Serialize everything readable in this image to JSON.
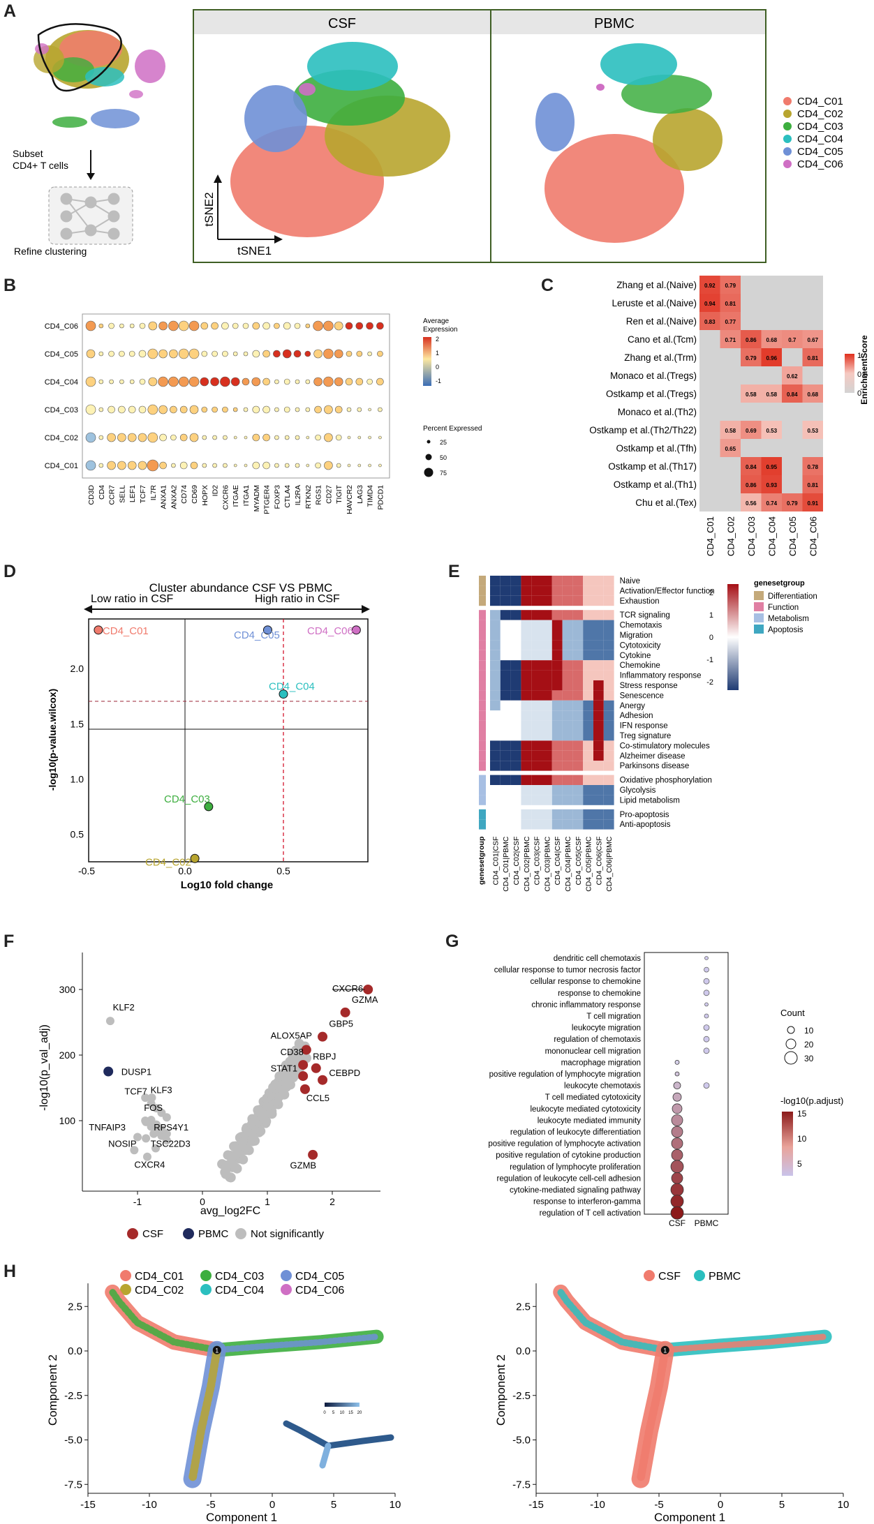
{
  "panels": {
    "a": "A",
    "b": "B",
    "c": "C",
    "d": "D",
    "e": "E",
    "f": "F",
    "g": "G",
    "h": "H"
  },
  "panelA": {
    "subset_text_1": "Subset",
    "subset_text_2": "CD4+ T cells",
    "refine_text": "Refine clustering",
    "facet_left": "CSF",
    "facet_right": "PBMC",
    "axis_y": "tSNE2",
    "axis_x": "tSNE1",
    "legend": [
      {
        "label": "CD4_C01",
        "color": "#F07B6D"
      },
      {
        "label": "CD4_C02",
        "color": "#B8A52F"
      },
      {
        "label": "CD4_C03",
        "color": "#3DAE3F"
      },
      {
        "label": "CD4_C04",
        "color": "#2BBFBF"
      },
      {
        "label": "CD4_C05",
        "color": "#6F90D6"
      },
      {
        "label": "CD4_C06",
        "color": "#CF6FC4"
      }
    ]
  },
  "panelB": {
    "rows": [
      "CD4_C06",
      "CD4_C05",
      "CD4_C04",
      "CD4_C03",
      "CD4_C02",
      "CD4_C01"
    ],
    "genes": [
      "CD3D",
      "CD4",
      "CCR7",
      "SELL",
      "LEF1",
      "TCF7",
      "IL7R",
      "ANXA1",
      "ANXA2",
      "CD74",
      "CD69",
      "HOPX",
      "ID2",
      "CXCR6",
      "ITGAE",
      "ITGA1",
      "MYADM",
      "PTGER4",
      "FOXP3",
      "CTLA4",
      "IL2RA",
      "RTKN2",
      "RGS1",
      "CD27",
      "TIGIT",
      "HAVCR2",
      "LAG3",
      "TIMD4",
      "PDCD1"
    ],
    "legend_avg_title_1": "Average",
    "legend_avg_title_2": "Expression",
    "legend_avg_ticks": [
      "2",
      "1",
      "0",
      "-1"
    ],
    "legend_pct_title": "Percent Expressed",
    "legend_pct_ticks": [
      "25",
      "50",
      "75"
    ]
  },
  "panelC": {
    "rows": [
      "Zhang et al.(Naive)",
      "Leruste et al.(Naive)",
      "Ren et al.(Naive)",
      "Cano et al.(Tcm)",
      "Zhang et al.(Trm)",
      "Monaco et al.(Tregs)",
      "Ostkamp et al.(Tregs)",
      "Monaco et al.(Th2)",
      "Ostkamp et al.(Th2/Th22)",
      "Ostkamp et al.(Tfh)",
      "Ostkamp et al.(Th17)",
      "Ostkamp et al.(Th1)",
      "Chu et al.(Tex)"
    ],
    "cols": [
      "CD4_C01",
      "CD4_C02",
      "CD4_C03",
      "CD4_C04",
      "CD4_C05",
      "CD4_C06"
    ],
    "values": [
      [
        "0.92",
        "0.79",
        "",
        "",
        "",
        ""
      ],
      [
        "0.94",
        "0.81",
        "",
        "",
        "",
        ""
      ],
      [
        "0.83",
        "0.77",
        "",
        "",
        "",
        ""
      ],
      [
        "",
        "0.71",
        "0.86",
        "0.68",
        "0.7",
        "0.67"
      ],
      [
        "",
        "",
        "0.79",
        "0.96",
        "",
        "0.81"
      ],
      [
        "",
        "",
        "",
        "",
        "0.62",
        ""
      ],
      [
        "",
        "",
        "0.58",
        "0.58",
        "0.84",
        "0.68"
      ],
      [
        "",
        "",
        "",
        "",
        "",
        ""
      ],
      [
        "",
        "0.58",
        "0.69",
        "0.53",
        "",
        "0.53"
      ],
      [
        "",
        "0.65",
        "",
        "",
        "",
        ""
      ],
      [
        "",
        "",
        "0.84",
        "0.95",
        "",
        "0.78"
      ],
      [
        "",
        "",
        "0.86",
        "0.93",
        "",
        "0.81"
      ],
      [
        "",
        "",
        "0.56",
        "0.74",
        "0.79",
        "0.91"
      ]
    ],
    "legend_title": "EnrichmentScore",
    "legend_ticks": [
      "1",
      "0.5",
      "0"
    ]
  },
  "panelD": {
    "title": "Cluster abundance CSF VS PBMC",
    "left_arrow": "Low ratio in CSF",
    "right_arrow": "High ratio in CSF",
    "xlabel": "Log10 fold change",
    "ylabel": "-log10(p-value.wilcox)",
    "x_ticks": [
      "-0.5",
      "0.0",
      "0.5"
    ],
    "y_ticks": [
      "2.0",
      "1.5",
      "1.0",
      "0.5"
    ]
  },
  "panelE": {
    "rows": [
      "Naive",
      "Activation/Effector function",
      "Exhaustion",
      "TCR signaling",
      "Chemotaxis",
      "Migration",
      "Cytotoxicity",
      "Cytokine",
      "Chemokine",
      "Inflammatory response",
      "Stress response",
      "Senescence",
      "Anergy",
      "Adhesion",
      "IFN response",
      "Treg signature",
      "Co-stimulatory molecules",
      "Alzheimer disease",
      "Parkinsons disease",
      "Oxidative phosphorylation",
      "Glycolysis",
      "Lipid metabolism",
      "Pro-apoptosis",
      "Anti-apoptosis"
    ],
    "cols": [
      "CD4_C01|CSF",
      "CD4_C01|PBMC",
      "CD4_C02|CSF",
      "CD4_C02|PBMC",
      "CD4_C03|CSF",
      "CD4_C03|PBMC",
      "CD4_C04|CSF",
      "CD4_C04|PBMC",
      "CD4_C05|CSF",
      "CD4_C05|PBMC",
      "CD4_C06|CSF",
      "CD4_C06|PBMC"
    ],
    "group_axis_label": "genesetgroup",
    "scale_ticks": [
      "2",
      "1",
      "0",
      "-1",
      "-2"
    ],
    "legend_title": "genesetgroup",
    "legend_items": [
      {
        "label": "Differentiation",
        "color": "#C4A97A"
      },
      {
        "label": "Function",
        "color": "#E07FA3"
      },
      {
        "label": "Metabolism",
        "color": "#A7BFE3"
      },
      {
        "label": "Apoptosis",
        "color": "#3FA7C1"
      }
    ]
  },
  "panelF": {
    "xlabel": "avg_log2FC",
    "ylabel": "-log10(p_val_adj)",
    "x_ticks": [
      "-1",
      "0",
      "1",
      "2"
    ],
    "y_ticks": [
      "300",
      "200",
      "100"
    ],
    "genes_csf": [
      "CXCR6",
      "GZMA",
      "GBP5",
      "ALOX5AP",
      "CD38",
      "RBPJ",
      "STAT1",
      "CEBPD",
      "CCL5",
      "GZMB"
    ],
    "genes_pbmc": [
      "DUSP1"
    ],
    "genes_gray": [
      "KLF2",
      "TCF7",
      "KLF3",
      "FOS",
      "TNFAIP3",
      "RPS4Y1",
      "NOSIP",
      "TSC22D3",
      "CXCR4"
    ],
    "legend": [
      {
        "label": "CSF",
        "color": "#A52A2A"
      },
      {
        "label": "PBMC",
        "color": "#1F2A5C"
      },
      {
        "label": "Not significantly",
        "color": "#BDBDBD"
      }
    ]
  },
  "panelG": {
    "terms": [
      "dendritic cell chemotaxis",
      "cellular response to tumor necrosis factor",
      "cellular response to chemokine",
      "response to chemokine",
      "chronic inflammatory response",
      "T cell migration",
      "leukocyte migration",
      "regulation of chemotaxis",
      "mononuclear cell migration",
      "macrophage migration",
      "positive regulation of lymphocyte migration",
      "leukocyte chemotaxis",
      "T cell mediated cytotoxicity",
      "leukocyte mediated cytotoxicity",
      "leukocyte mediated immunity",
      "regulation of leukocyte differentiation",
      "positive regulation of lymphocyte activation",
      "positive regulation of cytokine production",
      "regulation of lymphocyte proliferation",
      "regulation of leukocyte cell-cell adhesion",
      "cytokine-mediated signaling pathway",
      "response to interferon-gamma",
      "regulation of T cell activation"
    ],
    "cols": [
      "CSF",
      "PBMC"
    ],
    "count_title": "Count",
    "count_ticks": [
      "10",
      "20",
      "30"
    ],
    "padj_title": "-log10(p.adjust)",
    "padj_ticks": [
      "15",
      "10",
      "5"
    ]
  },
  "panelH": {
    "legend_left": [
      {
        "label": "CD4_C01",
        "color": "#F07B6D"
      },
      {
        "label": "CD4_C03",
        "color": "#3DAE3F"
      },
      {
        "label": "CD4_C05",
        "color": "#6F90D6"
      },
      {
        "label": "CD4_C02",
        "color": "#B8A52F"
      },
      {
        "label": "CD4_C04",
        "color": "#2BBFBF"
      },
      {
        "label": "CD4_C06",
        "color": "#CF6FC4"
      }
    ],
    "legend_right": [
      {
        "label": "CSF",
        "color": "#F07B6D"
      },
      {
        "label": "PBMC",
        "color": "#2BBFBF"
      }
    ],
    "xlabel": "Component 1",
    "ylabel": "Component 2",
    "x_ticks": [
      "-15",
      "-10",
      "-5",
      "0",
      "5",
      "10"
    ],
    "y_ticks": [
      "2.5",
      "0.0",
      "-2.5",
      "-5.0",
      "-7.5"
    ],
    "branch_label": "1",
    "inset_ticks": [
      "0",
      "5",
      "10",
      "15",
      "20"
    ]
  }
}
